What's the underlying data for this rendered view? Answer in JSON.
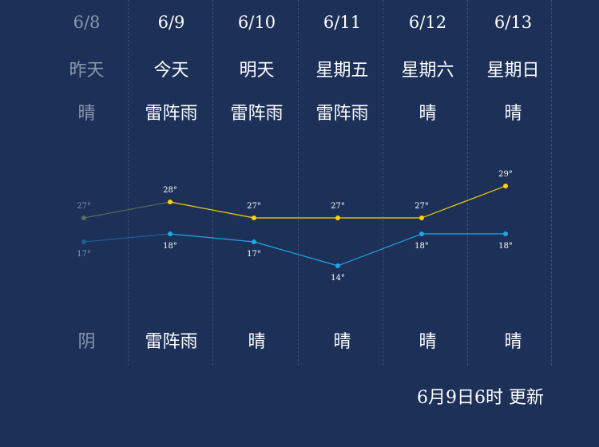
{
  "days": [
    {
      "date": "6/8",
      "label": "昨天",
      "weather_day": "晴",
      "weather_night": "阴",
      "high": "27°",
      "low": "17°",
      "high_value": 27,
      "low_value": 17,
      "past": true
    },
    {
      "date": "6/9",
      "label": "今天",
      "weather_day": "雷阵雨",
      "weather_night": "雷阵雨",
      "high": "28°",
      "low": "18°",
      "high_value": 28,
      "low_value": 18,
      "past": false
    },
    {
      "date": "6/10",
      "label": "明天",
      "weather_day": "雷阵雨",
      "weather_night": "晴",
      "high": "27°",
      "low": "17°",
      "high_value": 27,
      "low_value": 17,
      "past": false
    },
    {
      "date": "6/11",
      "label": "星期五",
      "weather_day": "雷阵雨",
      "weather_night": "晴",
      "high": "27°",
      "low": "14°",
      "high_value": 27,
      "low_value": 14,
      "past": false
    },
    {
      "date": "6/12",
      "label": "星期六",
      "weather_day": "晴",
      "weather_night": "晴",
      "high": "27°",
      "low": "18°",
      "high_value": 27,
      "low_value": 18,
      "past": false
    },
    {
      "date": "6/13",
      "label": "星期日",
      "weather_day": "晴",
      "weather_night": "晴",
      "high": "29°",
      "low": "18°",
      "high_value": 29,
      "low_value": 18,
      "past": false
    }
  ],
  "update_text": "6月9日6时 更新",
  "colors": {
    "background": "#1c3058",
    "high_line": "#ffd400",
    "low_line": "#1fa6e8",
    "past_high_line": "#5f6a60",
    "past_low_line": "#1e5f94"
  }
}
